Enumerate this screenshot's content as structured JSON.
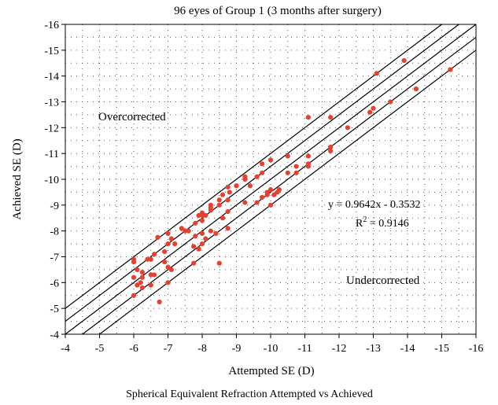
{
  "chart_data": {
    "type": "scatter",
    "title": "96 eyes of Group 1 (3 months after surgery)",
    "xlabel": "Attempted SE (D)",
    "ylabel": "Achieved SE (D)",
    "caption": "Spherical Equivalent Refraction Attempted vs Achieved",
    "xlim": [
      -4,
      -16
    ],
    "ylim": [
      -4,
      -16
    ],
    "x_ticks": [
      "-4",
      "-5",
      "-6",
      "-7",
      "-8",
      "-9",
      "-10",
      "-11",
      "-12",
      "-13",
      "-14",
      "-15",
      "-16"
    ],
    "y_ticks": [
      "-4",
      "-5",
      "-6",
      "-7",
      "-8",
      "-9",
      "-10",
      "-11",
      "-12",
      "-13",
      "-14",
      "-15",
      "-16"
    ],
    "grid": "dotted",
    "point_color": "#e8402f",
    "line_color": "#000000",
    "annotations": {
      "over": "Overcorrected",
      "under": "Undercorrected",
      "equation": "y = 0.9642x - 0.3532",
      "r2_prefix": "R",
      "r2_sup": "2",
      "r2_value": " = 0.9146"
    },
    "reference_lines": [
      {
        "offset": -1.0
      },
      {
        "offset": -0.5
      },
      {
        "offset": 0.0
      },
      {
        "offset": 0.5
      },
      {
        "offset": 1.0
      }
    ],
    "points": [
      [
        -6.0,
        -5.5
      ],
      [
        -6.0,
        -6.2
      ],
      [
        -6.0,
        -6.8
      ],
      [
        -6.0,
        -6.9
      ],
      [
        -6.1,
        -6.5
      ],
      [
        -6.1,
        -5.9
      ],
      [
        -6.25,
        -6.2
      ],
      [
        -6.25,
        -6.4
      ],
      [
        -6.25,
        -5.8
      ],
      [
        -6.4,
        -6.9
      ],
      [
        -6.5,
        -6.9
      ],
      [
        -6.5,
        -6.3
      ],
      [
        -6.5,
        -5.9
      ],
      [
        -6.6,
        -7.1
      ],
      [
        -6.7,
        -7.75
      ],
      [
        -6.75,
        -5.25
      ],
      [
        -6.9,
        -7.2
      ],
      [
        -6.9,
        -6.8
      ],
      [
        -7.0,
        -6.6
      ],
      [
        -7.0,
        -6.0
      ],
      [
        -7.0,
        -7.9
      ],
      [
        -7.1,
        -7.7
      ],
      [
        -7.1,
        -6.5
      ],
      [
        -7.2,
        -7.5
      ],
      [
        -7.4,
        -8.1
      ],
      [
        -7.5,
        -8.0
      ],
      [
        -7.75,
        -6.75
      ],
      [
        -7.75,
        -7.4
      ],
      [
        -7.8,
        -7.8
      ],
      [
        -7.8,
        -8.3
      ],
      [
        -7.9,
        -8.6
      ],
      [
        -7.9,
        -7.3
      ],
      [
        -8.0,
        -8.7
      ],
      [
        -8.0,
        -7.5
      ],
      [
        -8.0,
        -8.4
      ],
      [
        -8.0,
        -7.9
      ],
      [
        -8.1,
        -7.7
      ],
      [
        -8.1,
        -8.6
      ],
      [
        -8.25,
        -8.9
      ],
      [
        -8.25,
        -8.0
      ],
      [
        -8.25,
        -8.8
      ],
      [
        -8.4,
        -7.9
      ],
      [
        -8.5,
        -9.0
      ],
      [
        -8.5,
        -6.75
      ],
      [
        -8.6,
        -9.4
      ],
      [
        -8.75,
        -9.2
      ],
      [
        -8.75,
        -8.1
      ],
      [
        -8.75,
        -9.7
      ],
      [
        -8.75,
        -8.75
      ],
      [
        -8.8,
        -9.5
      ],
      [
        -9.0,
        -9.75
      ],
      [
        -9.25,
        -9.1
      ],
      [
        -9.25,
        -10.0
      ],
      [
        -9.25,
        -10.1
      ],
      [
        -9.4,
        -9.75
      ],
      [
        -9.6,
        -9.1
      ],
      [
        -9.75,
        -10.25
      ],
      [
        -9.75,
        -9.3
      ],
      [
        -9.75,
        -10.6
      ],
      [
        -9.9,
        -9.5
      ],
      [
        -10.0,
        -10.75
      ],
      [
        -10.0,
        -9.6
      ],
      [
        -10.0,
        -9.0
      ],
      [
        -10.1,
        -9.4
      ],
      [
        -10.25,
        -9.6
      ],
      [
        -10.5,
        -10.25
      ],
      [
        -10.5,
        -10.9
      ],
      [
        -10.75,
        -10.5
      ],
      [
        -10.75,
        -10.25
      ],
      [
        -11.1,
        -10.9
      ],
      [
        -11.1,
        -10.6
      ],
      [
        -11.1,
        -10.5
      ],
      [
        -11.1,
        -12.4
      ],
      [
        -11.75,
        -11.25
      ],
      [
        -11.75,
        -11.1
      ],
      [
        -11.75,
        -12.4
      ],
      [
        -12.25,
        -12.0
      ],
      [
        -12.9,
        -12.6
      ],
      [
        -13.0,
        -12.75
      ],
      [
        -13.1,
        -14.1
      ],
      [
        -13.5,
        -13.0
      ],
      [
        -13.9,
        -14.6
      ],
      [
        -14.25,
        -13.5
      ],
      [
        -15.25,
        -14.25
      ],
      [
        -9.6,
        -10.1
      ],
      [
        -9.0,
        -9.75
      ],
      [
        -8.6,
        -8.5
      ],
      [
        -8.25,
        -9.0
      ],
      [
        -7.6,
        -8.0
      ],
      [
        -6.6,
        -6.3
      ],
      [
        -7.0,
        -7.5
      ],
      [
        -6.2,
        -6.0
      ],
      [
        -10.2,
        -9.5
      ],
      [
        -9.9,
        -9.4
      ],
      [
        -8.0,
        -8.6
      ],
      [
        -8.5,
        -9.2
      ]
    ]
  }
}
